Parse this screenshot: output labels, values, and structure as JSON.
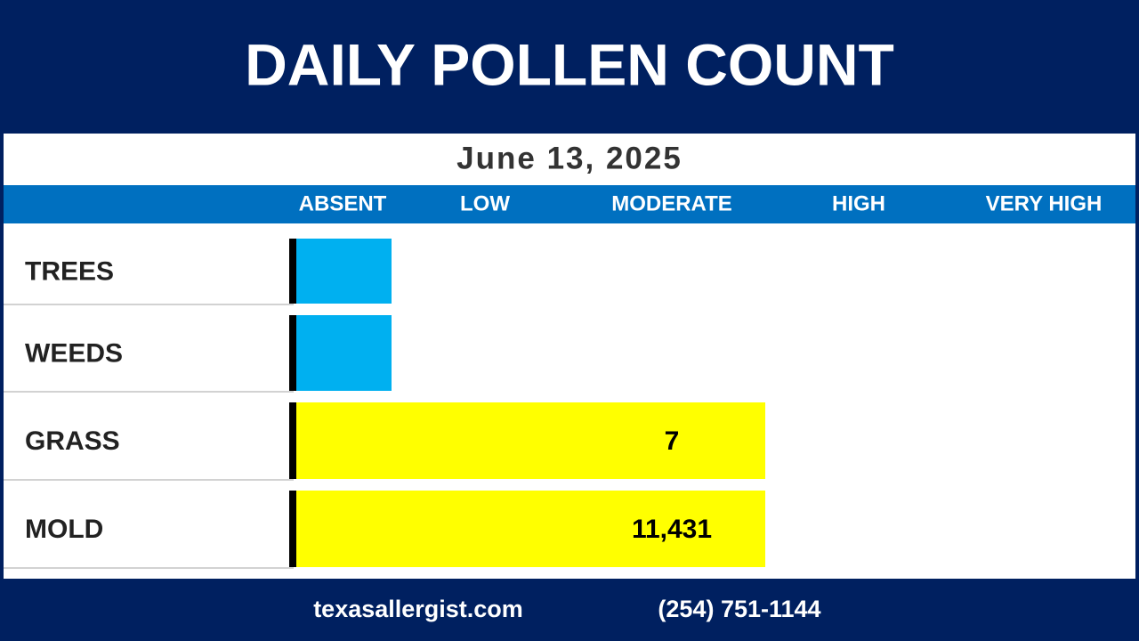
{
  "title": "DAILY POLLEN COUNT",
  "date": "June 13, 2025",
  "levels": [
    "ABSENT",
    "LOW",
    "MODERATE",
    "HIGH",
    "VERY HIGH"
  ],
  "rows": [
    {
      "label": "TREES",
      "level": "ABSENT",
      "color": "#00b0f0"
    },
    {
      "label": "WEEDS",
      "level": "ABSENT",
      "color": "#00b0f0"
    },
    {
      "label": "GRASS",
      "level": "MODERATE",
      "color": "#ffff00",
      "count": "7"
    },
    {
      "label": "MOLD",
      "level": "MODERATE",
      "color": "#ffff00",
      "count": "11,431"
    }
  ],
  "footer": {
    "website": "texasallergist.com",
    "phone": "(254) 751-1144"
  }
}
